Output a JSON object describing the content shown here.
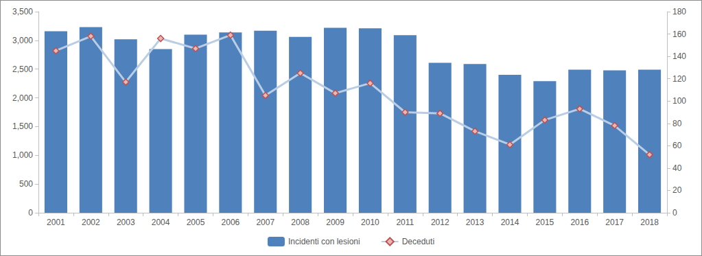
{
  "chart_data": {
    "type": "bar",
    "categories": [
      "2001",
      "2002",
      "2003",
      "2004",
      "2005",
      "2006",
      "2007",
      "2008",
      "2009",
      "2010",
      "2011",
      "2012",
      "2013",
      "2014",
      "2015",
      "2016",
      "2017",
      "2018"
    ],
    "series": [
      {
        "name": "Incidenti con lesioni",
        "type": "bar",
        "color": "#4f81bd",
        "values": [
          3160,
          3230,
          3020,
          2850,
          3100,
          3140,
          3170,
          3060,
          3220,
          3210,
          3090,
          2610,
          2590,
          2400,
          2290,
          2490,
          2480,
          2490
        ]
      },
      {
        "name": "Deceduti",
        "type": "line",
        "axis": "y2",
        "color": "#b9cde5",
        "marker": "diamond",
        "values": [
          145,
          158,
          117,
          156,
          147,
          159,
          105,
          125,
          107,
          116,
          90,
          89,
          73,
          61,
          83,
          93,
          78,
          52
        ]
      }
    ],
    "ylim": [
      0,
      3500
    ],
    "yticks": [
      0,
      500,
      1000,
      1500,
      2000,
      2500,
      3000,
      3500
    ],
    "y2lim": [
      0,
      180
    ],
    "y2ticks": [
      0,
      20,
      40,
      60,
      80,
      100,
      120,
      140,
      160,
      180
    ],
    "grid": false,
    "legend": "bottom"
  }
}
